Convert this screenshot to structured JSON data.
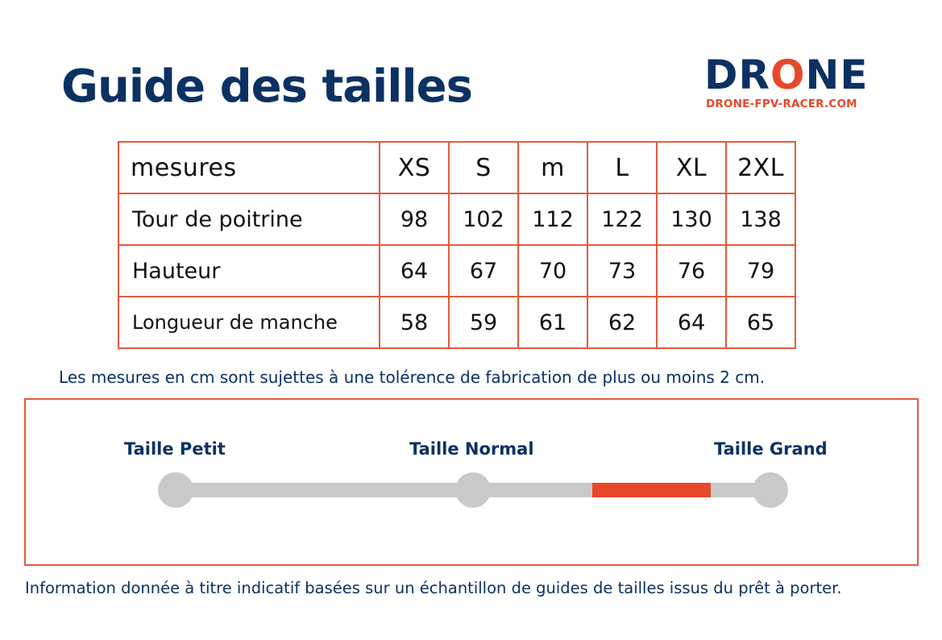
{
  "title": "Guide des tailles",
  "logo": {
    "word_before": "DR",
    "word_o": "O",
    "word_after": "NE",
    "subtitle": "DRONE-FPV-RACER.COM"
  },
  "table": {
    "header_label": "mesures",
    "sizes": [
      "XS",
      "S",
      "m",
      "L",
      "XL",
      "2XL"
    ],
    "rows": [
      {
        "label": "Tour de poitrine",
        "values": [
          "98",
          "102",
          "112",
          "122",
          "130",
          "138"
        ]
      },
      {
        "label": "Hauteur",
        "values": [
          "64",
          "67",
          "70",
          "73",
          "76",
          "79"
        ]
      },
      {
        "label": "Longueur de manche",
        "values": [
          "58",
          "59",
          "61",
          "62",
          "64",
          "65"
        ]
      }
    ]
  },
  "tolerance_note": "Les mesures en cm sont sujettes à une tolérence de fabrication de plus ou moins 2 cm.",
  "fit_scale": {
    "labels": [
      "Taille Petit",
      "Taille Normal",
      "Taille Grand"
    ],
    "highlight_range": [
      0.7,
      0.9
    ]
  },
  "disclaimer": "Information donnée à titre indicatif basées sur un échantillon de guides de tailles issus du prêt à porter.",
  "colors": {
    "navy": "#0b3163",
    "accent": "#e8472a",
    "track": "#c9c9c9"
  }
}
